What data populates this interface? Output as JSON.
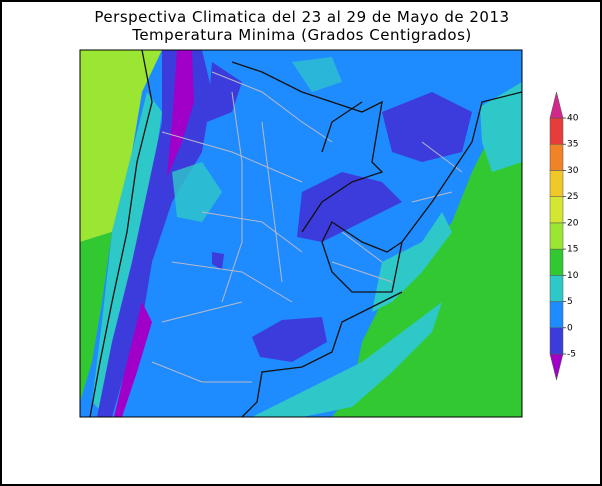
{
  "title": [
    "Perspectiva Climatica del 23 al 29 de Mayo de 2013",
    "Temperatura Minima (Grados Centigrados)"
  ],
  "colorbar": {
    "ticks": [
      -5,
      0,
      5,
      10,
      15,
      20,
      25,
      30,
      35,
      40
    ],
    "colors": [
      "#a000c8",
      "#3c3cdc",
      "#1e8cff",
      "#2ec8c8",
      "#32c832",
      "#9be632",
      "#d2e632",
      "#f0c828",
      "#f08228",
      "#e63c3c",
      "#d2288c"
    ]
  }
}
